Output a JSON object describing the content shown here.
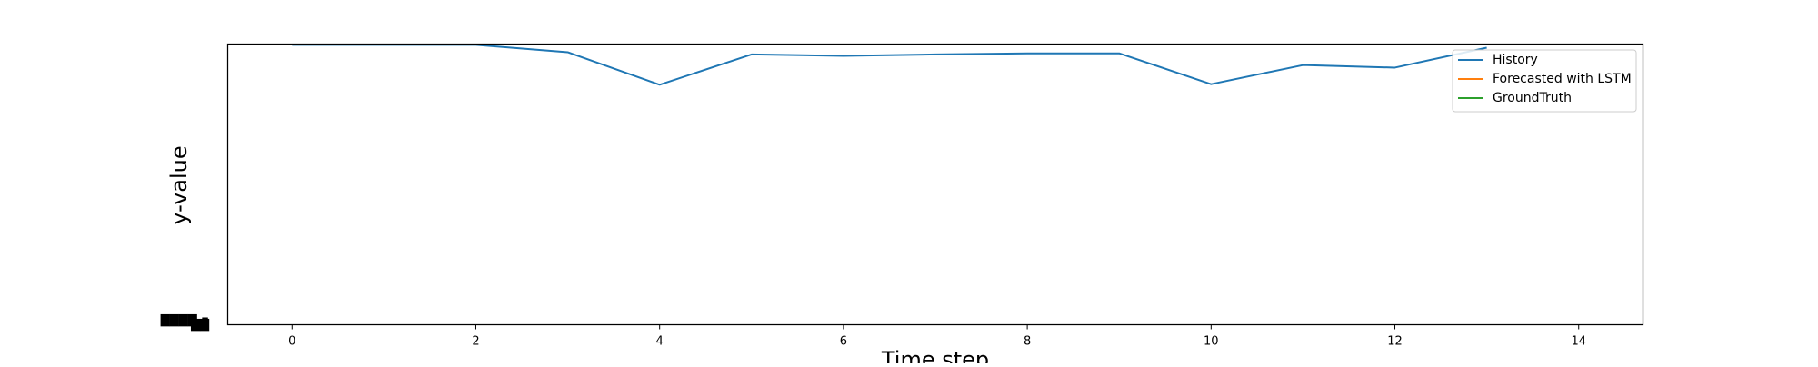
{
  "chart_data": {
    "type": "line",
    "title": "",
    "xlabel": "Time step",
    "ylabel": "y-value",
    "xlim": [
      -0.7,
      14.7
    ],
    "xticks": [
      0,
      2,
      4,
      6,
      8,
      10,
      12,
      14
    ],
    "xtick_labels": [
      "0",
      "2",
      "4",
      "6",
      "8",
      "10",
      "12",
      "14"
    ],
    "grid": false,
    "legend_position": "top-right",
    "series": [
      {
        "name": "History",
        "color": "#1f77b4",
        "x": [
          0,
          1,
          2,
          3,
          4,
          5,
          6,
          7,
          8,
          9,
          10,
          11,
          12,
          13
        ],
        "y": [
          0.997,
          0.997,
          0.997,
          0.971,
          0.855,
          0.963,
          0.958,
          0.963,
          0.967,
          0.967,
          0.857,
          0.925,
          0.916,
          0.987
        ]
      },
      {
        "name": "Forecasted with LSTM",
        "color": "#ff7f0e",
        "x": [],
        "y": []
      },
      {
        "name": "GroundTruth",
        "color": "#2ca02c",
        "x": [],
        "y": []
      }
    ]
  }
}
